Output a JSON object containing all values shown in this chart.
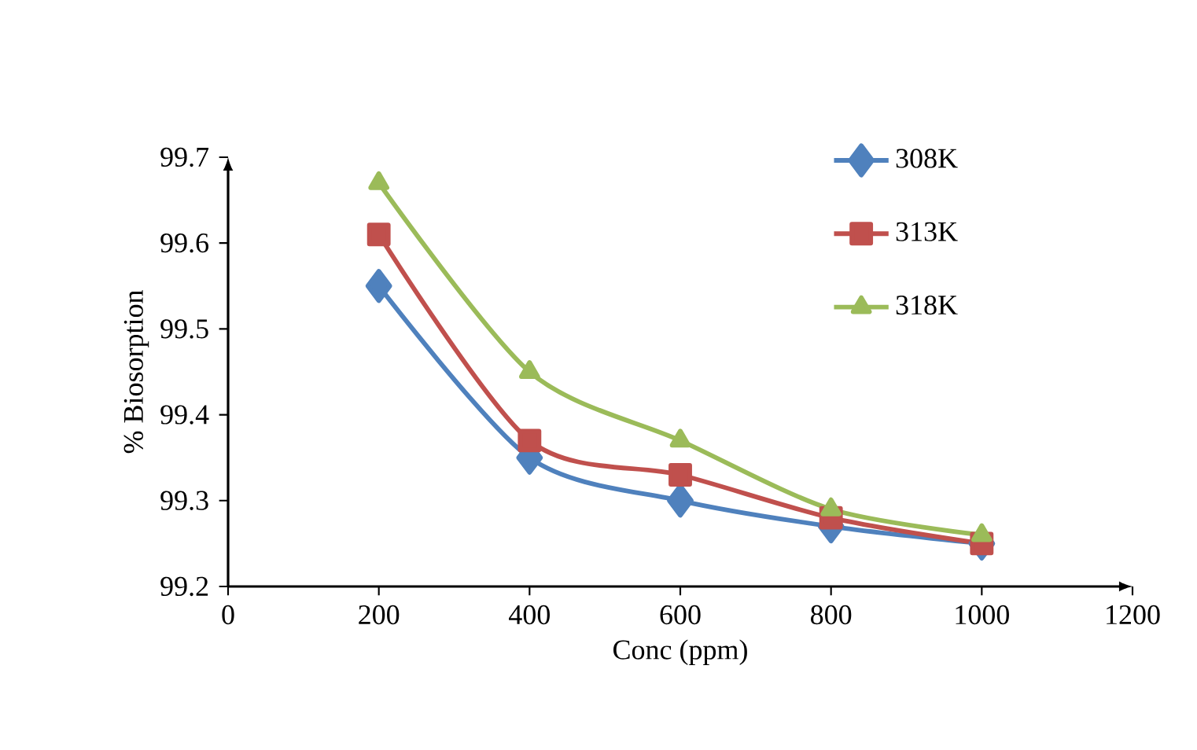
{
  "chart_data": {
    "type": "line",
    "xlabel": "Conc (ppm)",
    "ylabel": "% Biosorption",
    "x": [
      200,
      400,
      600,
      800,
      1000
    ],
    "series": [
      {
        "name": "308K",
        "color": "#4f81bd",
        "marker": "diamond",
        "values": [
          99.55,
          99.35,
          99.3,
          99.27,
          99.25
        ]
      },
      {
        "name": "313K",
        "color": "#c0504d",
        "marker": "square",
        "values": [
          99.61,
          99.37,
          99.33,
          99.28,
          99.25
        ]
      },
      {
        "name": "318K",
        "color": "#9bbb59",
        "marker": "triangle",
        "values": [
          99.67,
          99.45,
          99.37,
          99.29,
          99.26
        ]
      }
    ],
    "xlim": [
      0,
      1200
    ],
    "xticks": [
      0,
      200,
      400,
      600,
      800,
      1000,
      1200
    ],
    "ylim": [
      99.2,
      99.7
    ],
    "yticks": [
      99.2,
      99.3,
      99.4,
      99.5,
      99.6,
      99.7
    ],
    "legend": "top right",
    "grid": false,
    "line_style": "solid"
  }
}
